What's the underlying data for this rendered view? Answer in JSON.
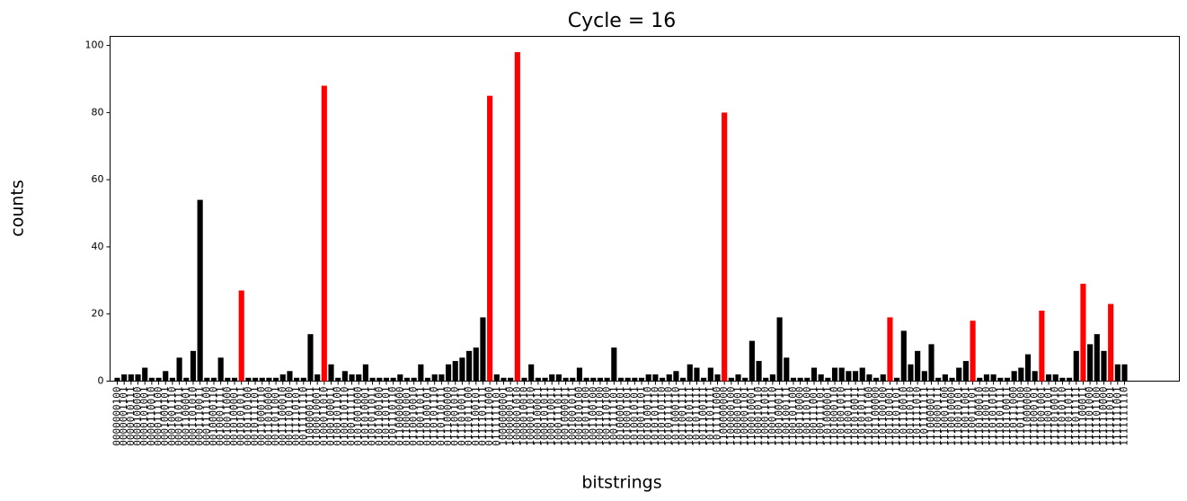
{
  "chart_data": {
    "type": "bar",
    "title": "Cycle = 16",
    "x_label": "bitstrings",
    "y_label": "counts",
    "categories": [
      "0000000100",
      "0000001101",
      "0000010111",
      "0000100000",
      "0000101001",
      "0000110010",
      "0000111100",
      "0001000101",
      "0001001110",
      "0001010111",
      "0001100001",
      "0001101010",
      "0001110011",
      "0001111100",
      "0010000110",
      "0010001111",
      "0010011000",
      "0010100001",
      "0010101011",
      "0010110100",
      "0010111101",
      "0011000110",
      "0011010000",
      "0011011001",
      "0011100010",
      "0011101100",
      "0011110101",
      "0011111110",
      "0100000111",
      "0100010001",
      "0100011010",
      "0100100011",
      "0100101100",
      "0100110110",
      "0100111111",
      "0101001000",
      "0101010001",
      "0101011011",
      "0101100100",
      "0101101101",
      "0101110110",
      "0110000000",
      "0110001001",
      "0110010010",
      "0110011011",
      "0110100101",
      "0110101110",
      "0110110111",
      "0111000000",
      "0111001010",
      "0111010011",
      "0111011100",
      "0111100101",
      "0111101111",
      "0111111000",
      "0111111101",
      "1000000001",
      "1000000110",
      "1000001010",
      "1000010010",
      "1000011010",
      "1000100011",
      "1000101011",
      "1000110011",
      "1000111011",
      "1001000011",
      "1001001011",
      "1001010100",
      "1001011100",
      "1001100100",
      "1001101100",
      "1001110100",
      "1001111101",
      "1010000101",
      "1010001101",
      "1010010101",
      "1010011101",
      "1010100110",
      "1010101110",
      "1010110110",
      "1010111110",
      "1011000110",
      "1011001111",
      "1011010111",
      "1011011111",
      "1011100111",
      "1011101111",
      "1011111000",
      "1100000000",
      "1100000100",
      "1100001001",
      "1100001101",
      "1100010001",
      "1100010110",
      "1100011010",
      "1100011110",
      "1100100011",
      "1100100111",
      "1100101100",
      "1100110000",
      "1100110100",
      "1100111001",
      "1100111101",
      "1101000001",
      "1101000110",
      "1101001010",
      "1101001111",
      "1101010011",
      "1101010111",
      "1101011100",
      "1101100000",
      "1101100100",
      "1101101001",
      "1101101101",
      "1101110010",
      "1101110110",
      "1101111010",
      "1101111111",
      "1110000011",
      "1110000111",
      "1110001100",
      "1110010000",
      "1110010101",
      "1110011001",
      "1110011101",
      "1110100010",
      "1110100110",
      "1110101010",
      "1110101111",
      "1110110011",
      "1110111000",
      "1110111100",
      "1111000000",
      "1111000101",
      "1111001001",
      "1111001101",
      "1111010010",
      "1111010110",
      "1111011011",
      "1111011111",
      "1111100011",
      "1111101000",
      "1111101100",
      "1111110000",
      "1111110101",
      "1111111001",
      "1111111110"
    ],
    "values": [
      1,
      2,
      2,
      2,
      4,
      1,
      1,
      3,
      1,
      7,
      1,
      9,
      54,
      1,
      1,
      7,
      1,
      1,
      27,
      1,
      1,
      1,
      1,
      1,
      2,
      3,
      1,
      1,
      14,
      2,
      88,
      5,
      1,
      3,
      2,
      2,
      5,
      1,
      1,
      1,
      1,
      2,
      1,
      1,
      5,
      1,
      2,
      2,
      5,
      6,
      7,
      9,
      10,
      19,
      85,
      2,
      1,
      1,
      98,
      1,
      5,
      1,
      1,
      2,
      2,
      1,
      1,
      4,
      1,
      1,
      1,
      1,
      10,
      1,
      1,
      1,
      1,
      2,
      2,
      1,
      2,
      3,
      1,
      5,
      4,
      1,
      4,
      2,
      80,
      1,
      2,
      1,
      12,
      6,
      1,
      2,
      19,
      7,
      1,
      1,
      1,
      4,
      2,
      1,
      4,
      4,
      3,
      3,
      4,
      2,
      1,
      2,
      19,
      1,
      15,
      5,
      9,
      3,
      11,
      1,
      2,
      1,
      4,
      6,
      18,
      1,
      2,
      2,
      1,
      1,
      3,
      4,
      8,
      3,
      21,
      2,
      2,
      1,
      1,
      9,
      29,
      11,
      14,
      9,
      23,
      5,
      5
    ],
    "colors": [
      "black",
      "black",
      "black",
      "black",
      "black",
      "black",
      "black",
      "black",
      "black",
      "black",
      "black",
      "black",
      "black",
      "black",
      "black",
      "black",
      "black",
      "black",
      "red",
      "black",
      "black",
      "black",
      "black",
      "black",
      "black",
      "black",
      "black",
      "black",
      "black",
      "black",
      "red",
      "black",
      "black",
      "black",
      "black",
      "black",
      "black",
      "black",
      "black",
      "black",
      "black",
      "black",
      "black",
      "black",
      "black",
      "black",
      "black",
      "black",
      "black",
      "black",
      "black",
      "black",
      "black",
      "black",
      "red",
      "black",
      "black",
      "black",
      "red",
      "black",
      "black",
      "black",
      "black",
      "black",
      "black",
      "black",
      "black",
      "black",
      "black",
      "black",
      "black",
      "black",
      "black",
      "black",
      "black",
      "black",
      "black",
      "black",
      "black",
      "black",
      "black",
      "black",
      "black",
      "black",
      "black",
      "black",
      "black",
      "black",
      "red",
      "black",
      "black",
      "black",
      "black",
      "black",
      "black",
      "black",
      "black",
      "black",
      "black",
      "black",
      "black",
      "black",
      "black",
      "black",
      "black",
      "black",
      "black",
      "black",
      "black",
      "black",
      "black",
      "black",
      "red",
      "black",
      "black",
      "black",
      "black",
      "black",
      "black",
      "black",
      "black",
      "black",
      "black",
      "black",
      "red",
      "black",
      "black",
      "black",
      "black",
      "black",
      "black",
      "black",
      "black",
      "black",
      "red",
      "black",
      "black",
      "black",
      "black",
      "black",
      "red",
      "black",
      "black",
      "black",
      "red",
      "black",
      "black"
    ],
    "ylim": [
      0,
      102.7
    ],
    "yticks": [
      0,
      20,
      40,
      60,
      80,
      100
    ]
  }
}
